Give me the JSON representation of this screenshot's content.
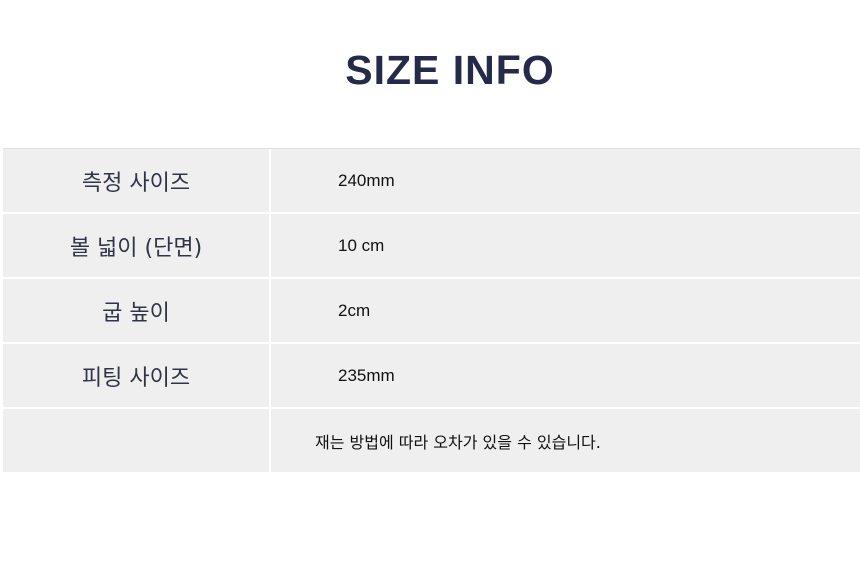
{
  "title": "SIZE INFO",
  "rows": [
    {
      "label": "측정 사이즈",
      "value": "240mm"
    },
    {
      "label": "볼 넓이 (단면)",
      "value": "10 cm"
    },
    {
      "label": "굽 높이",
      "value": "2cm"
    },
    {
      "label": "피팅 사이즈",
      "value": "235mm"
    }
  ],
  "note": "재는 방법에 따라 오차가 있을 수 있습니다."
}
